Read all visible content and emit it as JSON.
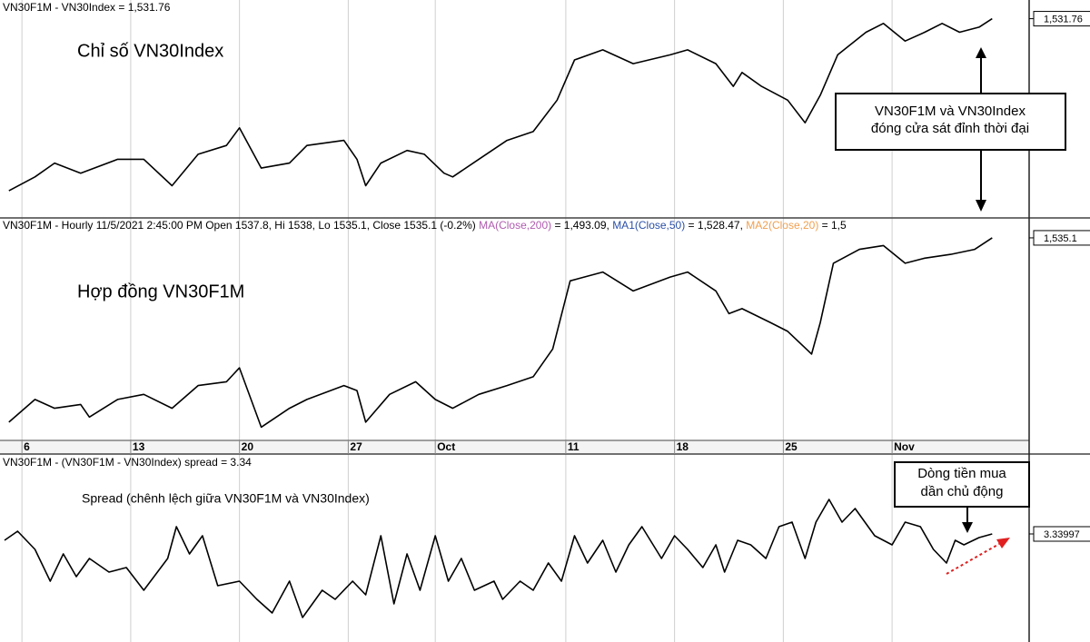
{
  "chart_data": [
    {
      "type": "line",
      "header": [
        {
          "text": "VN30F1M - VN30Index = 1,531.76",
          "color": "#000000"
        }
      ],
      "label": "Chỉ số VN30Index",
      "callout": [
        "VN30F1M và VN30Index",
        "đóng cửa sát đỉnh thời đại"
      ],
      "color": "#000000",
      "x": [
        -0.6,
        0.6,
        1.5,
        2.7,
        4.4,
        5.6,
        6.9,
        8.1,
        9.4,
        10,
        11,
        12.3,
        13.1,
        14.8,
        15.4,
        15.8,
        16.5,
        17.7,
        18.5,
        19.4,
        19.8,
        21,
        22.3,
        23.5,
        24.6,
        25.4,
        26.7,
        28.1,
        29.8,
        30.6,
        31.9,
        32.7,
        33.1,
        34,
        35.2,
        36,
        36.7,
        37.5,
        38.8,
        39.6,
        40.6,
        41.5,
        42.3,
        43.1,
        44,
        44.6
      ],
      "values": [
        1395,
        1406,
        1417,
        1409,
        1420,
        1420,
        1399,
        1424,
        1431,
        1445,
        1413,
        1417,
        1431,
        1435,
        1420,
        1399,
        1417,
        1427,
        1424,
        1409,
        1406,
        1420,
        1435,
        1442,
        1467,
        1499,
        1507,
        1496,
        1503,
        1507,
        1496,
        1478,
        1489,
        1478,
        1467,
        1449,
        1471,
        1503,
        1521,
        1528,
        1514,
        1521,
        1528,
        1521,
        1525,
        1531.76
      ],
      "last_price": {
        "value": 1531.76,
        "label": "1,531.76"
      },
      "xlim": [
        -0.8,
        46.3
      ],
      "ylim": [
        1377,
        1543
      ]
    },
    {
      "type": "line",
      "header": [
        {
          "text": "VN30F1M - Hourly 11/5/2021 2:45:00 PM Open 1537.8, Hi 1538, Lo 1535.1, Close 1535.1 (-0.2%) ",
          "color": "#000000"
        },
        {
          "text": "MA(Close,200)",
          "color": "#b05cb0"
        },
        {
          "text": " = 1,493.09, ",
          "color": "#000000"
        },
        {
          "text": "MA1(Close,50)",
          "color": "#2a4fa8"
        },
        {
          "text": " = 1,528.47, ",
          "color": "#000000"
        },
        {
          "text": "MA2(Close,20)",
          "color": "#f0a050"
        },
        {
          "text": " = 1,5",
          "color": "#000000"
        }
      ],
      "label": "Hợp đồng VN30F1M",
      "color": "#000000",
      "x": [
        -0.6,
        0.6,
        1.5,
        2.7,
        3.1,
        4.4,
        5.6,
        6.9,
        8.1,
        9.4,
        10,
        11,
        12.3,
        13.1,
        14.8,
        15.4,
        15.8,
        16.9,
        18.1,
        19,
        19.8,
        21,
        22.3,
        23.5,
        24.4,
        25.2,
        26.7,
        28.1,
        29.8,
        30.6,
        31.9,
        32.5,
        33.1,
        34.4,
        35.2,
        36.3,
        36.7,
        37.3,
        38.5,
        39.6,
        40.6,
        41.5,
        42.7,
        43.8,
        44.6
      ],
      "values": [
        1389,
        1407,
        1400,
        1403,
        1393,
        1407,
        1411,
        1400,
        1418,
        1421,
        1432,
        1385,
        1400,
        1407,
        1418,
        1414,
        1389,
        1411,
        1421,
        1407,
        1400,
        1411,
        1418,
        1425,
        1447,
        1501,
        1508,
        1493,
        1504,
        1508,
        1493,
        1475,
        1479,
        1468,
        1461,
        1443,
        1468,
        1515,
        1526,
        1529,
        1515,
        1519,
        1522,
        1526,
        1535.1
      ],
      "last_price": {
        "value": 1535.1,
        "label": "1,535.1"
      },
      "xlim": [
        -0.8,
        46.3
      ],
      "ylim": [
        1374.5,
        1547.3
      ],
      "xticks": [
        {
          "value": 0,
          "label": "6"
        },
        {
          "value": 5,
          "label": "13"
        },
        {
          "value": 10,
          "label": "20"
        },
        {
          "value": 15,
          "label": "27"
        },
        {
          "value": 19,
          "label": "Oct"
        },
        {
          "value": 25,
          "label": "11"
        },
        {
          "value": 30,
          "label": "18"
        },
        {
          "value": 35,
          "label": "25"
        },
        {
          "value": 40,
          "label": "Nov"
        }
      ]
    },
    {
      "type": "line",
      "header": [
        {
          "text": "VN30F1M - (VN30F1M - VN30Index) spread = 3.34",
          "color": "#000000"
        }
      ],
      "label": "Spread (chênh lệch giữa VN30F1M và VN30Index)",
      "callout": [
        "Dòng tiền mua",
        "dần chủ động"
      ],
      "color": "#000000",
      "x": [
        -0.8,
        -0.2,
        0.6,
        1.3,
        1.9,
        2.5,
        3.1,
        4,
        4.8,
        5.6,
        6.7,
        7.1,
        7.7,
        8.3,
        9,
        10,
        10.8,
        11.5,
        12.3,
        12.9,
        13.8,
        14.4,
        15.2,
        15.8,
        16.5,
        17.1,
        17.7,
        18.3,
        19,
        19.6,
        20.2,
        20.8,
        21.7,
        22.1,
        22.9,
        23.5,
        24.2,
        24.8,
        25.4,
        26,
        26.7,
        27.3,
        27.9,
        28.5,
        29.4,
        30,
        30.6,
        31.3,
        31.9,
        32.3,
        32.9,
        33.5,
        34.2,
        34.8,
        35.4,
        36,
        36.5,
        37.1,
        37.7,
        38.3,
        39.2,
        40,
        40.6,
        41.3,
        41.9,
        42.5,
        42.9,
        43.3,
        44,
        44.6
      ],
      "values": [
        2.64,
        3.64,
        1.64,
        -1.86,
        1.14,
        -1.36,
        0.64,
        -0.86,
        -0.36,
        -2.86,
        0.64,
        4.14,
        1.14,
        3.14,
        -2.36,
        -1.86,
        -3.86,
        -5.36,
        -1.86,
        -5.86,
        -2.86,
        -3.86,
        -1.86,
        -3.36,
        3.14,
        -4.36,
        1.14,
        -2.86,
        3.14,
        -1.86,
        0.64,
        -2.86,
        -1.86,
        -3.86,
        -1.86,
        -2.86,
        0.14,
        -1.86,
        3.14,
        0.14,
        2.64,
        -0.86,
        2.14,
        4.14,
        0.64,
        3.14,
        1.64,
        -0.36,
        2.14,
        -0.86,
        2.64,
        2.14,
        0.64,
        4.14,
        4.64,
        0.64,
        4.64,
        7.14,
        4.64,
        6.14,
        3.14,
        2.14,
        4.64,
        4.14,
        1.64,
        0.14,
        2.64,
        2.14,
        2.94,
        3.33997
      ],
      "last_price": 3.33997,
      "xlim": [
        -0.8,
        46.3
      ],
      "ylim": [
        -8.36,
        11.64
      ]
    }
  ]
}
